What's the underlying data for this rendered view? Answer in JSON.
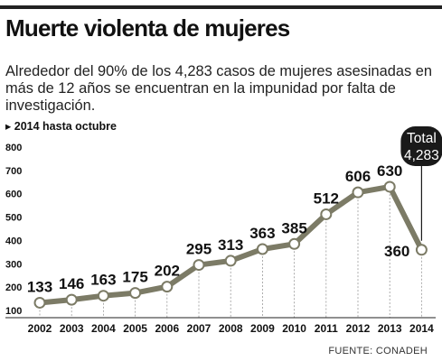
{
  "header": {
    "title": "Muerte violenta de mujeres",
    "subtitle": "Alrededor del 90% de los 4,283 casos de mujeres asesinadas en más de 12 años se encuentran en la impunidad por falta de investigación.",
    "note": "▸ 2014 hasta octubre",
    "source": "FUENTE: CONADEH"
  },
  "total_badge": {
    "label": "Total",
    "value": "4,283"
  },
  "colors": {
    "line": "#7c7b66",
    "marker_fill": "#ffffff",
    "badge": "#1a1a1a",
    "dashes": "#999999"
  },
  "chart_data": {
    "type": "line",
    "title": "Muerte violenta de mujeres",
    "categories": [
      "2002",
      "2003",
      "2004",
      "2005",
      "2006",
      "2007",
      "2008",
      "2009",
      "2010",
      "2011",
      "2012",
      "2013",
      "2014"
    ],
    "values": [
      133,
      146,
      163,
      175,
      202,
      295,
      313,
      363,
      385,
      512,
      606,
      630,
      360
    ],
    "labels": [
      "133",
      "146",
      "163",
      "175",
      "202",
      "295",
      "313",
      "363",
      "385",
      "512",
      "606",
      "630",
      "360"
    ],
    "y_ticks": [
      "800",
      "700",
      "600",
      "500",
      "400",
      "300",
      "200",
      "100"
    ],
    "y_tick_values": [
      800,
      700,
      600,
      500,
      400,
      300,
      200,
      100
    ],
    "ylim": [
      100,
      800
    ],
    "grid": "vertical dashed lines at each year",
    "xlabel": "",
    "ylabel": ""
  }
}
